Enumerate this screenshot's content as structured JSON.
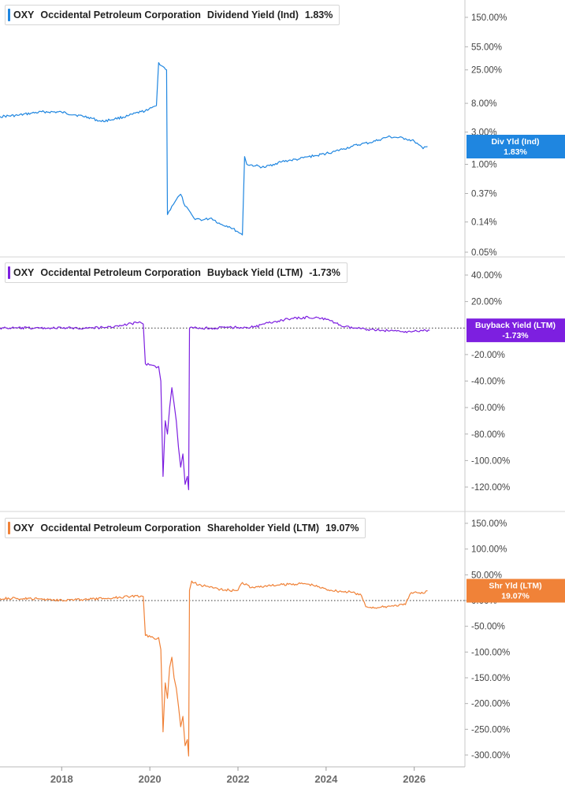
{
  "chart_data": [
    {
      "type": "line",
      "ticker": "OXY",
      "company": "Occidental Petroleum Corporation",
      "metric": "Dividend Yield (Ind)",
      "current_value": "1.83%",
      "color": "#1f86e0",
      "scale": "log",
      "ylim": [
        0.05,
        150
      ],
      "y_ticks": [
        "150.00%",
        "55.00%",
        "25.00%",
        "8.00%",
        "3.00%",
        "1.00%",
        "0.37%",
        "0.14%",
        "0.05%"
      ],
      "y_tick_values": [
        150,
        55,
        25,
        8,
        3,
        1,
        0.37,
        0.14,
        0.05
      ],
      "badge_label": "Div Yld (Ind)",
      "badge_value": "1.83%",
      "x": [
        2016.6,
        2017.0,
        2017.3,
        2017.6,
        2018.0,
        2018.3,
        2018.6,
        2018.9,
        2019.2,
        2019.5,
        2019.8,
        2019.95,
        2020.1,
        2020.15,
        2020.2,
        2020.3,
        2020.38,
        2020.4,
        2020.5,
        2020.6,
        2020.7,
        2020.8,
        2020.95,
        2021.0,
        2021.2,
        2021.4,
        2021.6,
        2021.8,
        2022.0,
        2022.1,
        2022.15,
        2022.2,
        2022.4,
        2022.6,
        2022.8,
        2023.0,
        2023.2,
        2023.4,
        2023.6,
        2023.8,
        2024.0,
        2024.2,
        2024.4,
        2024.6,
        2024.8,
        2025.0,
        2025.2,
        2025.4,
        2025.6,
        2025.8,
        2026.0,
        2026.1,
        2026.2,
        2026.3
      ],
      "y": [
        5.1,
        5.3,
        5.7,
        6.0,
        5.9,
        5.4,
        5.0,
        4.3,
        4.7,
        5.2,
        6.0,
        6.3,
        7.2,
        7.4,
        32,
        28,
        25,
        0.18,
        0.24,
        0.3,
        0.36,
        0.24,
        0.18,
        0.16,
        0.15,
        0.16,
        0.13,
        0.12,
        0.1,
        0.09,
        1.3,
        1.0,
        0.95,
        0.9,
        1.0,
        1.1,
        1.15,
        1.2,
        1.3,
        1.35,
        1.45,
        1.55,
        1.7,
        1.85,
        2.0,
        2.1,
        2.3,
        2.55,
        2.5,
        2.4,
        2.2,
        1.95,
        1.7,
        1.83
      ]
    },
    {
      "type": "line",
      "ticker": "OXY",
      "company": "Occidental Petroleum Corporation",
      "metric": "Buyback Yield (LTM)",
      "current_value": "-1.73%",
      "color": "#7d1fe0",
      "scale": "linear",
      "ylim": [
        -125,
        45
      ],
      "y_ticks": [
        "40.00%",
        "20.00%",
        "-20.00%",
        "-40.00%",
        "-60.00%",
        "-80.00%",
        "-100.00%",
        "-120.00%"
      ],
      "y_tick_values": [
        40,
        20,
        -20,
        -40,
        -60,
        -80,
        -100,
        -120
      ],
      "badge_label": "Buyback Yield (LTM)",
      "badge_value": "-1.73%",
      "x": [
        2016.6,
        2017.0,
        2017.5,
        2018.0,
        2018.5,
        2019.0,
        2019.4,
        2019.5,
        2019.7,
        2019.8,
        2019.85,
        2019.9,
        2020.05,
        2020.15,
        2020.2,
        2020.25,
        2020.3,
        2020.35,
        2020.4,
        2020.45,
        2020.5,
        2020.55,
        2020.6,
        2020.65,
        2020.7,
        2020.75,
        2020.8,
        2020.85,
        2020.88,
        2020.9,
        2021.0,
        2021.5,
        2021.8,
        2022.0,
        2022.2,
        2022.4,
        2022.6,
        2022.8,
        2023.0,
        2023.2,
        2023.4,
        2023.6,
        2023.8,
        2024.0,
        2024.2,
        2024.4,
        2024.6,
        2024.8,
        2025.0,
        2025.2,
        2025.4,
        2025.6,
        2025.8,
        2026.0,
        2026.2,
        2026.35
      ],
      "y": [
        0,
        0,
        0,
        0,
        0,
        0.5,
        2,
        3,
        4,
        4,
        3,
        -27,
        -28,
        -30,
        -29,
        -40,
        -112,
        -70,
        -80,
        -60,
        -45,
        -57,
        -70,
        -90,
        -105,
        -95,
        -118,
        -112,
        -122,
        0,
        0,
        0,
        0.5,
        0.5,
        0.5,
        1,
        3,
        4.5,
        6,
        7,
        7.5,
        8,
        8,
        6.5,
        4,
        1,
        0,
        -0.5,
        -1,
        -1.5,
        -2,
        -2.3,
        -2.5,
        -2.4,
        -2.1,
        -1.73
      ]
    },
    {
      "type": "line",
      "ticker": "OXY",
      "company": "Occidental Petroleum Corporation",
      "metric": "Shareholder Yield (LTM)",
      "current_value": "19.07%",
      "color": "#f08238",
      "scale": "linear",
      "ylim": [
        -315,
        160
      ],
      "y_ticks": [
        "150.00%",
        "100.00%",
        "50.00%",
        "0.00%",
        "-50.00%",
        "-100.00%",
        "-150.00%",
        "-200.00%",
        "-250.00%",
        "-300.00%"
      ],
      "y_tick_values": [
        150,
        100,
        50,
        0,
        -50,
        -100,
        -150,
        -200,
        -250,
        -300
      ],
      "badge_label": "Shr Yld (LTM)",
      "badge_value": "19.07%",
      "x": [
        2016.6,
        2017.0,
        2017.5,
        2018.0,
        2018.5,
        2019.0,
        2019.5,
        2019.8,
        2019.85,
        2019.9,
        2020.05,
        2020.15,
        2020.2,
        2020.25,
        2020.3,
        2020.35,
        2020.4,
        2020.45,
        2020.5,
        2020.55,
        2020.6,
        2020.65,
        2020.7,
        2020.75,
        2020.8,
        2020.85,
        2020.88,
        2020.9,
        2020.95,
        2021.1,
        2021.3,
        2021.6,
        2021.8,
        2022.0,
        2022.1,
        2022.3,
        2022.6,
        2022.9,
        2023.2,
        2023.5,
        2023.7,
        2024.0,
        2024.3,
        2024.6,
        2024.8,
        2024.9,
        2025.2,
        2025.5,
        2025.8,
        2025.9,
        2026.0,
        2026.2,
        2026.3
      ],
      "y": [
        4,
        4,
        3,
        1,
        2,
        4,
        8,
        9,
        8,
        -68,
        -70,
        -75,
        -72,
        -95,
        -255,
        -160,
        -190,
        -130,
        -110,
        -150,
        -170,
        -205,
        -245,
        -225,
        -282,
        -270,
        -302,
        20,
        38,
        30,
        28,
        22,
        20,
        20,
        35,
        25,
        28,
        30,
        32,
        33,
        30,
        22,
        18,
        16,
        10,
        -12,
        -14,
        -10,
        -8,
        12,
        16,
        14,
        19.07
      ]
    }
  ],
  "x_axis": {
    "ticks": [
      "2018",
      "2020",
      "2022",
      "2024",
      "2026"
    ],
    "tick_values": [
      2018,
      2020,
      2022,
      2024,
      2026
    ],
    "range": [
      2016.6,
      2027.15
    ]
  }
}
